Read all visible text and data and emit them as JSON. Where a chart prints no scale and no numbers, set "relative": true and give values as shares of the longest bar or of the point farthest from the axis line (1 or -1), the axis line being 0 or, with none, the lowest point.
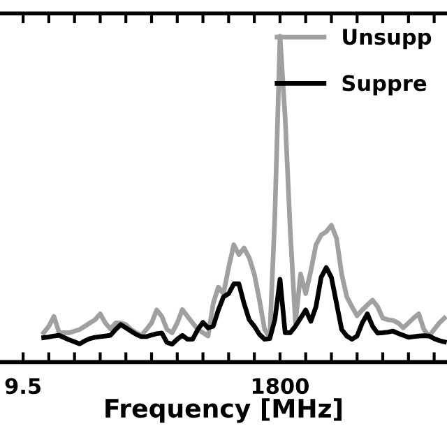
{
  "chart_data": {
    "type": "line",
    "xlabel": "Frequency [MHz]",
    "relative": true,
    "categories": [
      "9.5",
      null,
      null,
      null,
      null,
      null,
      null,
      null,
      null,
      null,
      null,
      null,
      null,
      null,
      null,
      null,
      null,
      null,
      null,
      null,
      null,
      null,
      null,
      null,
      null,
      null,
      null,
      null,
      null,
      null,
      null,
      null,
      null,
      null,
      null,
      null,
      null,
      null,
      null,
      null,
      null,
      null,
      null,
      null,
      null,
      null,
      null,
      null,
      null,
      null,
      "1800",
      null,
      null,
      null,
      null,
      null,
      null,
      null,
      null,
      null,
      null,
      null,
      null,
      null,
      null,
      null,
      null,
      null,
      null,
      null,
      null,
      null,
      null,
      null,
      null,
      null,
      null,
      null,
      null,
      null,
      null,
      null,
      null
    ],
    "legend": "top right",
    "grid": false,
    "series": [
      {
        "name": "Unsupp",
        "color": "#a0a0a0",
        "values": [
          null,
          null,
          null,
          null,
          0.09,
          0.11,
          0.14,
          0.09,
          0.09,
          0.09,
          0.095,
          0.1,
          0.11,
          0.12,
          0.13,
          0.148,
          0.12,
          0.102,
          0.12,
          0.12,
          0.115,
          0.1,
          0.09,
          0.082,
          0.1,
          0.12,
          0.16,
          0.14,
          0.1,
          0.09,
          0.12,
          0.161,
          0.14,
          0.12,
          0.1,
          0.09,
          0.08,
          0.18,
          0.23,
          0.21,
          0.29,
          0.36,
          0.33,
          0.35,
          0.32,
          0.27,
          0.19,
          0.1,
          0.075,
          0.45,
          1.0,
          0.75,
          0.4,
          0.12,
          0.27,
          0.21,
          0.28,
          0.36,
          0.39,
          0.4,
          0.42,
          0.38,
          0.27,
          0.2,
          0.17,
          0.142,
          0.16,
          0.175,
          0.19,
          0.17,
          0.135,
          0.13,
          0.128,
          0.12,
          0.105,
          0.12,
          0.135,
          0.148,
          0.1,
          0.08,
          0.1,
          0.12,
          0.135
        ]
      },
      {
        "name": "Suppre",
        "color": "#000000",
        "values": [
          null,
          null,
          null,
          null,
          0.075,
          0.077,
          0.08,
          0.082,
          0.075,
          0.068,
          0.062,
          0.056,
          0.065,
          0.072,
          0.076,
          0.078,
          0.08,
          0.082,
          0.1,
          0.115,
          0.105,
          0.095,
          0.085,
          0.078,
          0.078,
          0.083,
          0.087,
          0.089,
          0.06,
          0.055,
          0.07,
          0.082,
          0.07,
          0.07,
          0.1,
          0.122,
          0.105,
          0.11,
          0.16,
          0.2,
          0.21,
          0.24,
          0.24,
          0.18,
          0.13,
          0.11,
          0.085,
          0.07,
          0.072,
          0.13,
          0.254,
          0.09,
          0.09,
          0.11,
          0.135,
          0.16,
          0.125,
          0.17,
          0.26,
          0.29,
          0.26,
          0.18,
          0.1,
          0.08,
          0.07,
          0.08,
          0.12,
          0.148,
          0.11,
          0.089,
          0.09,
          0.092,
          0.095,
          0.088,
          0.082,
          0.076,
          0.078,
          0.08,
          0.081,
          0.08,
          0.072,
          0.066,
          0.062
        ]
      }
    ]
  }
}
